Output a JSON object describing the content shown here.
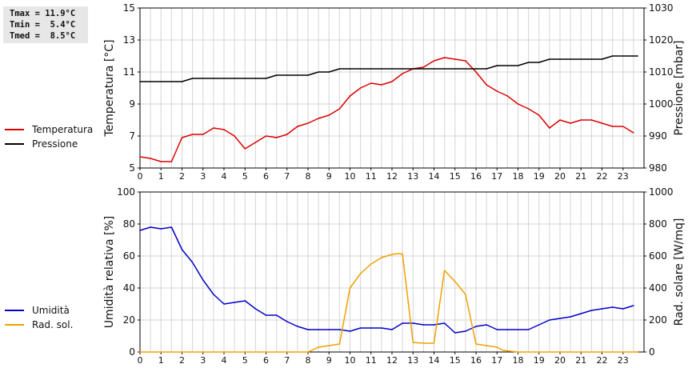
{
  "stats": {
    "tmax": "Tmax = 11.9°C",
    "tmin": "Tmin =  5.4°C",
    "tmed": "Tmed =  8.5°C"
  },
  "legend_top": [
    {
      "label": "Temperatura",
      "color": "#dd0000"
    },
    {
      "label": "Pressione",
      "color": "#000000"
    }
  ],
  "legend_bottom": [
    {
      "label": "Umidità",
      "color": "#0000cc"
    },
    {
      "label": "Rad. sol.",
      "color": "#f0a000"
    }
  ],
  "chart_data": [
    {
      "type": "line",
      "xlim": [
        0,
        24
      ],
      "x_ticks": [
        0,
        1,
        2,
        3,
        4,
        5,
        6,
        7,
        8,
        9,
        10,
        11,
        12,
        13,
        14,
        15,
        16,
        17,
        18,
        19,
        20,
        21,
        22,
        23
      ],
      "ylabel": "Temperatura [°C]",
      "ylim": [
        5,
        15
      ],
      "y_ticks": [
        5,
        7,
        9,
        11,
        13,
        15
      ],
      "y2label": "Pressione [mbar]",
      "y2lim": [
        980,
        1030
      ],
      "y2_ticks": [
        980,
        990,
        1000,
        1010,
        1020,
        1030
      ],
      "grid": true,
      "series": [
        {
          "name": "Temperatura",
          "color": "#dd0000",
          "axis": "left",
          "x": [
            0,
            0.5,
            1,
            1.5,
            2,
            2.5,
            3,
            3.5,
            4,
            4.5,
            5,
            5.5,
            6,
            6.5,
            7,
            7.5,
            8,
            8.5,
            9,
            9.5,
            10,
            10.5,
            11,
            11.5,
            12,
            12.5,
            13,
            13.5,
            14,
            14.5,
            15,
            15.5,
            16,
            16.5,
            17,
            17.5,
            18,
            18.5,
            19,
            19.5,
            20,
            20.5,
            21,
            21.5,
            22,
            22.5,
            23,
            23.5
          ],
          "y": [
            5.7,
            5.6,
            5.4,
            5.4,
            6.9,
            7.1,
            7.1,
            7.5,
            7.4,
            7.0,
            6.2,
            6.6,
            7.0,
            6.9,
            7.1,
            7.6,
            7.8,
            8.1,
            8.3,
            8.7,
            9.5,
            10.0,
            10.3,
            10.2,
            10.4,
            10.9,
            11.2,
            11.3,
            11.7,
            11.9,
            11.8,
            11.7,
            11.0,
            10.2,
            9.8,
            9.5,
            9.0,
            8.7,
            8.3,
            7.5,
            8.0,
            7.8,
            8.0,
            8.0,
            7.8,
            7.6,
            7.6,
            7.2
          ]
        },
        {
          "name": "Pressione",
          "color": "#000000",
          "axis": "right",
          "x": [
            0,
            2,
            2.5,
            5,
            5.5,
            6,
            6.5,
            8,
            8.5,
            9,
            9.5,
            10,
            16,
            16.5,
            17,
            18,
            18.5,
            19,
            19.5,
            22,
            22.5,
            23.7
          ],
          "y": [
            1007,
            1007,
            1008,
            1008,
            1008,
            1008,
            1009,
            1009,
            1010,
            1010,
            1011,
            1011,
            1011,
            1011,
            1012,
            1012,
            1013,
            1013,
            1014,
            1014,
            1015,
            1015
          ]
        }
      ]
    },
    {
      "type": "line",
      "xlim": [
        0,
        24
      ],
      "x_ticks": [
        0,
        1,
        2,
        3,
        4,
        5,
        6,
        7,
        8,
        9,
        10,
        11,
        12,
        13,
        14,
        15,
        16,
        17,
        18,
        19,
        20,
        21,
        22,
        23
      ],
      "ylabel": "Umidità relativa [%]",
      "ylim": [
        0,
        100
      ],
      "y_ticks": [
        0,
        20,
        40,
        60,
        80,
        100
      ],
      "y2label": "Rad. solare [W/mq]",
      "y2lim": [
        0,
        1000
      ],
      "y2_ticks": [
        0,
        200,
        400,
        600,
        800,
        1000
      ],
      "grid": true,
      "series": [
        {
          "name": "Umidità",
          "color": "#0000cc",
          "axis": "left",
          "x": [
            0,
            0.5,
            1,
            1.5,
            2,
            2.5,
            3,
            3.5,
            4,
            4.5,
            5,
            5.5,
            6,
            6.5,
            7,
            7.5,
            8,
            8.5,
            9,
            9.5,
            10,
            10.5,
            11,
            11.5,
            12,
            12.5,
            13,
            13.5,
            14,
            14.5,
            15,
            15.5,
            16,
            16.5,
            17,
            17.5,
            18,
            18.5,
            19,
            19.5,
            20,
            20.5,
            21,
            21.5,
            22,
            22.5,
            23,
            23.5
          ],
          "y": [
            76,
            78,
            77,
            78,
            64,
            56,
            45,
            36,
            30,
            31,
            32,
            27,
            23,
            23,
            19,
            16,
            14,
            14,
            14,
            14,
            13,
            15,
            15,
            15,
            14,
            18,
            18,
            17,
            17,
            18,
            12,
            13,
            16,
            17,
            14,
            14,
            14,
            14,
            17,
            20,
            21,
            22,
            24,
            26,
            27,
            28,
            27,
            29
          ]
        },
        {
          "name": "Rad. sol.",
          "color": "#f0a000",
          "axis": "right",
          "x": [
            0,
            8,
            8.5,
            9,
            9.5,
            10,
            10.5,
            11,
            11.5,
            12,
            12.3,
            12.5,
            13,
            13.5,
            14,
            14.5,
            15,
            15.5,
            16,
            16.5,
            17,
            17.3,
            18,
            20,
            23.7
          ],
          "y": [
            0,
            0,
            30,
            40,
            50,
            400,
            490,
            550,
            590,
            610,
            615,
            612,
            60,
            55,
            55,
            510,
            440,
            360,
            50,
            40,
            30,
            10,
            0,
            0,
            0
          ]
        }
      ]
    }
  ]
}
